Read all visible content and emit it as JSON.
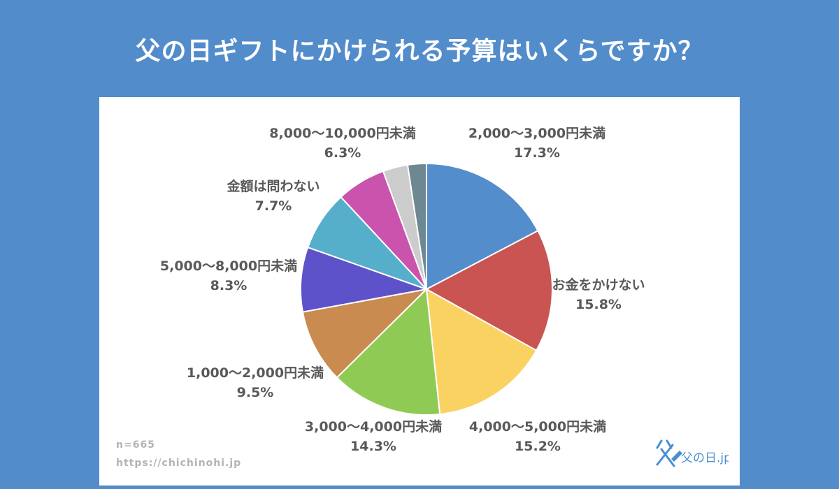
{
  "title": "父の日ギフトにかけられる予算はいくらですか？",
  "footer": {
    "sample": "n=665",
    "url": "https://chichinohi.jp"
  },
  "logo_text": "父の日.jp",
  "chart_data": {
    "type": "pie",
    "title": "父の日ギフトにかけられる予算はいくらですか？",
    "slices": [
      {
        "label": "2,000〜3,000円未満",
        "value": 17.3,
        "value_label": "17.3%",
        "color": "#548dcb"
      },
      {
        "label": "お金をかけない",
        "value": 15.8,
        "value_label": "15.8%",
        "color": "#c95451"
      },
      {
        "label": "4,000〜5,000円未満",
        "value": 15.2,
        "value_label": "15.2%",
        "color": "#f9d262"
      },
      {
        "label": "3,000〜4,000円未満",
        "value": 14.3,
        "value_label": "14.3%",
        "color": "#8fcb54"
      },
      {
        "label": "1,000〜2,000円未満",
        "value": 9.5,
        "value_label": "9.5%",
        "color": "#c98b4f"
      },
      {
        "label": "5,000〜8,000円未満",
        "value": 8.3,
        "value_label": "8.3%",
        "color": "#5d52c9"
      },
      {
        "label": "金額は問わない",
        "value": 7.7,
        "value_label": "7.7%",
        "color": "#55afcb"
      },
      {
        "label": "8,000〜10,000円未満",
        "value": 6.3,
        "value_label": "6.3%",
        "color": "#c953ad"
      },
      {
        "label": "",
        "value": 3.2,
        "value_label": "",
        "color": "#cccccc"
      },
      {
        "label": "",
        "value": 2.4,
        "value_label": "",
        "color": "#6e8892"
      }
    ],
    "start": "12 o'clock",
    "direction": "clockwise",
    "legend": "none"
  }
}
